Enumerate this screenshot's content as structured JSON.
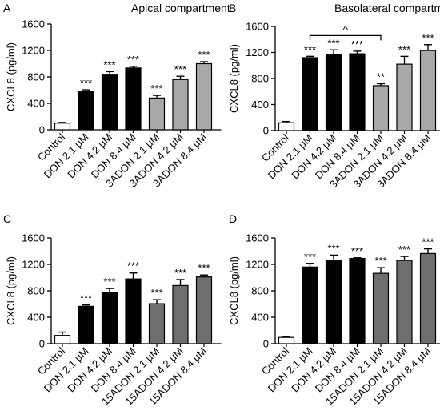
{
  "chart_data": [
    {
      "type": "bar",
      "panel": "A",
      "title": "Apical compartment",
      "xlabel": "",
      "ylabel": "CXCL8 (pg/ml)",
      "ylim": [
        0,
        1600
      ],
      "yticks": [
        "0",
        "400",
        "800",
        "1200",
        "1600"
      ],
      "categories": [
        "Control",
        "DON 2.1 μM",
        "DON 4.2 μM",
        "DON 8.4 μM",
        "3ADON 2.1 μM",
        "3ADON 4.2 μM",
        "3ADON 8.4 μM"
      ],
      "values": [
        100,
        575,
        840,
        935,
        480,
        760,
        1000
      ],
      "errors": [
        10,
        30,
        40,
        25,
        40,
        50,
        30
      ],
      "colors": [
        "#ffffff",
        "#000000",
        "#000000",
        "#000000",
        "#a8a8a8",
        "#a8a8a8",
        "#a8a8a8"
      ],
      "significance": [
        "",
        "***",
        "***",
        "***",
        "***",
        "***",
        "***"
      ],
      "bracket": null
    },
    {
      "type": "bar",
      "panel": "B",
      "title": "Basolateral compartment",
      "xlabel": "",
      "ylabel": "CXCL8 (pg/ml)",
      "ylim": [
        0,
        1600
      ],
      "yticks": [
        "0",
        "400",
        "800",
        "1200",
        "1600"
      ],
      "categories": [
        "Control",
        "DON 2.1 μM",
        "DON 4.2 μM",
        "DON 8.4 μM",
        "3ADON 2.1 μM",
        "3ADON 4.2 μM",
        "3ADON 8.4 μM"
      ],
      "values": [
        120,
        1120,
        1170,
        1180,
        690,
        1020,
        1230
      ],
      "errors": [
        20,
        20,
        70,
        40,
        30,
        120,
        90
      ],
      "colors": [
        "#ffffff",
        "#000000",
        "#000000",
        "#000000",
        "#a8a8a8",
        "#a8a8a8",
        "#a8a8a8"
      ],
      "significance": [
        "",
        "***",
        "***",
        "***",
        "**",
        "***",
        "***"
      ],
      "bracket": {
        "from": 1,
        "to": 4,
        "label": "^",
        "y": 1460
      }
    },
    {
      "type": "bar",
      "panel": "C",
      "title": "",
      "xlabel": "",
      "ylabel": "CXCL8 (pg/ml)",
      "ylim": [
        0,
        1600
      ],
      "yticks": [
        "0",
        "400",
        "800",
        "1200",
        "1600"
      ],
      "categories": [
        "Control",
        "DON 2.1 μM",
        "DON 4.2 μM",
        "DON 8.4 μM",
        "15ADON 2.1 μM",
        "15ADON 4.2 μM",
        "15ADON 8.4 μM"
      ],
      "values": [
        125,
        565,
        775,
        980,
        605,
        880,
        1010
      ],
      "errors": [
        50,
        20,
        60,
        90,
        60,
        90,
        30
      ],
      "colors": [
        "#ffffff",
        "#000000",
        "#000000",
        "#000000",
        "#6e6e6e",
        "#6e6e6e",
        "#6e6e6e"
      ],
      "significance": [
        "",
        "***",
        "***",
        "***",
        "***",
        "***",
        "***"
      ],
      "bracket": null
    },
    {
      "type": "bar",
      "panel": "D",
      "title": "",
      "xlabel": "",
      "ylabel": "CXCL8 (pg/ml)",
      "ylim": [
        0,
        1600
      ],
      "yticks": [
        "0",
        "400",
        "800",
        "1200",
        "1600"
      ],
      "categories": [
        "Control",
        "DON 2.1 μM",
        "DON 4.2 μM",
        "DON 8.4 μM",
        "15ADON 2.1 μM",
        "15ADON 4.2 μM",
        "15ADON 8.4 μM"
      ],
      "values": [
        95,
        1160,
        1265,
        1290,
        1065,
        1260,
        1365
      ],
      "errors": [
        15,
        55,
        75,
        10,
        85,
        60,
        70
      ],
      "colors": [
        "#ffffff",
        "#000000",
        "#000000",
        "#000000",
        "#6e6e6e",
        "#6e6e6e",
        "#6e6e6e"
      ],
      "significance": [
        "",
        "***",
        "***",
        "***",
        "***",
        "***",
        "***"
      ],
      "bracket": null
    }
  ]
}
